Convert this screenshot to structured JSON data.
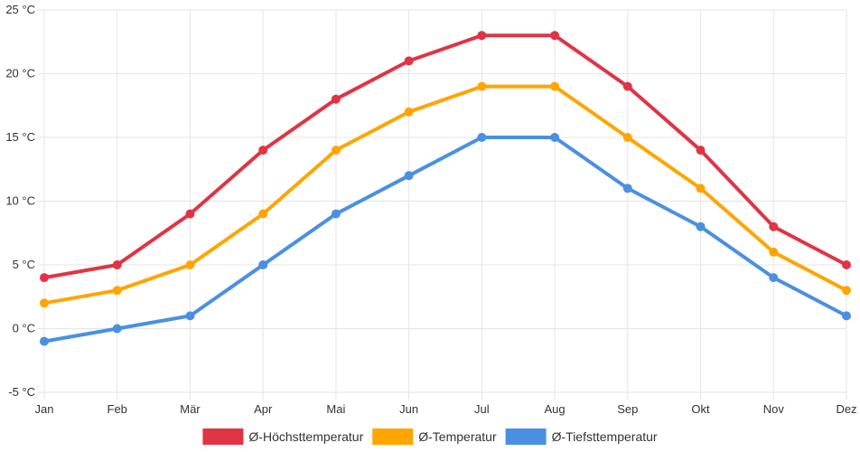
{
  "chart_data": {
    "type": "line",
    "title": "",
    "xlabel": "",
    "ylabel": "",
    "categories": [
      "Jan",
      "Feb",
      "Mär",
      "Apr",
      "Mai",
      "Jun",
      "Jul",
      "Aug",
      "Sep",
      "Okt",
      "Nov",
      "Dez"
    ],
    "ylim": [
      -5,
      25
    ],
    "yticks": [
      -5,
      0,
      5,
      10,
      15,
      20,
      25
    ],
    "y_unit": " °C",
    "grid": true,
    "legend_position": "bottom",
    "series": [
      {
        "name": "Ø-Höchsttemperatur",
        "color": "#e03444",
        "values": [
          4,
          5,
          9,
          14,
          18,
          21,
          23,
          23,
          19,
          14,
          8,
          5
        ]
      },
      {
        "name": "Ø-Temperatur",
        "color": "#ffa500",
        "values": [
          2,
          3,
          5,
          9,
          14,
          17,
          19,
          19,
          15,
          11,
          6,
          3
        ]
      },
      {
        "name": "Ø-Tiefsttemperatur",
        "color": "#4a90e2",
        "values": [
          -1,
          0,
          1,
          5,
          9,
          12,
          15,
          15,
          11,
          8,
          4,
          1
        ]
      }
    ]
  }
}
